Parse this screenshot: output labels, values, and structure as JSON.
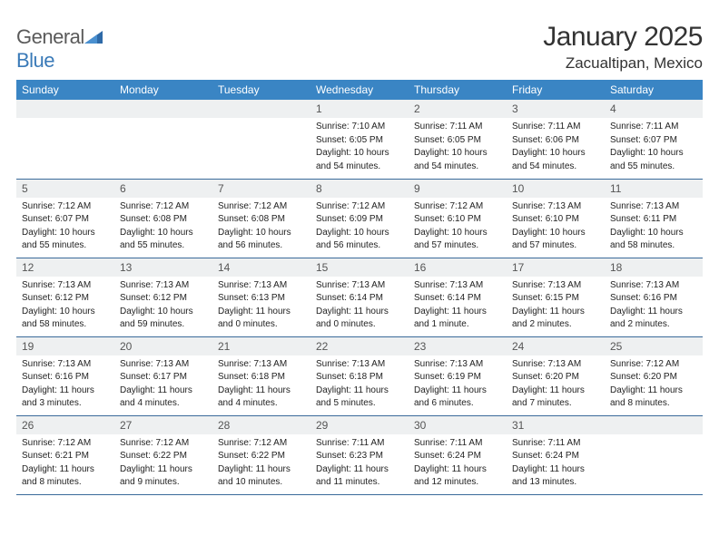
{
  "brand": {
    "name_part1": "General",
    "name_part2": "Blue"
  },
  "title": "January 2025",
  "location": "Zacualtipan, Mexico",
  "colors": {
    "header_bg": "#3a85c4",
    "header_text": "#ffffff",
    "daynum_bg": "#eef0f1",
    "border": "#3a6a9a",
    "brand_gray": "#5a5a5a",
    "brand_blue": "#3a7ab8"
  },
  "weekdays": [
    "Sunday",
    "Monday",
    "Tuesday",
    "Wednesday",
    "Thursday",
    "Friday",
    "Saturday"
  ],
  "weeks": [
    [
      null,
      null,
      null,
      {
        "n": "1",
        "sr": "Sunrise: 7:10 AM",
        "ss": "Sunset: 6:05 PM",
        "d1": "Daylight: 10 hours",
        "d2": "and 54 minutes."
      },
      {
        "n": "2",
        "sr": "Sunrise: 7:11 AM",
        "ss": "Sunset: 6:05 PM",
        "d1": "Daylight: 10 hours",
        "d2": "and 54 minutes."
      },
      {
        "n": "3",
        "sr": "Sunrise: 7:11 AM",
        "ss": "Sunset: 6:06 PM",
        "d1": "Daylight: 10 hours",
        "d2": "and 54 minutes."
      },
      {
        "n": "4",
        "sr": "Sunrise: 7:11 AM",
        "ss": "Sunset: 6:07 PM",
        "d1": "Daylight: 10 hours",
        "d2": "and 55 minutes."
      }
    ],
    [
      {
        "n": "5",
        "sr": "Sunrise: 7:12 AM",
        "ss": "Sunset: 6:07 PM",
        "d1": "Daylight: 10 hours",
        "d2": "and 55 minutes."
      },
      {
        "n": "6",
        "sr": "Sunrise: 7:12 AM",
        "ss": "Sunset: 6:08 PM",
        "d1": "Daylight: 10 hours",
        "d2": "and 55 minutes."
      },
      {
        "n": "7",
        "sr": "Sunrise: 7:12 AM",
        "ss": "Sunset: 6:08 PM",
        "d1": "Daylight: 10 hours",
        "d2": "and 56 minutes."
      },
      {
        "n": "8",
        "sr": "Sunrise: 7:12 AM",
        "ss": "Sunset: 6:09 PM",
        "d1": "Daylight: 10 hours",
        "d2": "and 56 minutes."
      },
      {
        "n": "9",
        "sr": "Sunrise: 7:12 AM",
        "ss": "Sunset: 6:10 PM",
        "d1": "Daylight: 10 hours",
        "d2": "and 57 minutes."
      },
      {
        "n": "10",
        "sr": "Sunrise: 7:13 AM",
        "ss": "Sunset: 6:10 PM",
        "d1": "Daylight: 10 hours",
        "d2": "and 57 minutes."
      },
      {
        "n": "11",
        "sr": "Sunrise: 7:13 AM",
        "ss": "Sunset: 6:11 PM",
        "d1": "Daylight: 10 hours",
        "d2": "and 58 minutes."
      }
    ],
    [
      {
        "n": "12",
        "sr": "Sunrise: 7:13 AM",
        "ss": "Sunset: 6:12 PM",
        "d1": "Daylight: 10 hours",
        "d2": "and 58 minutes."
      },
      {
        "n": "13",
        "sr": "Sunrise: 7:13 AM",
        "ss": "Sunset: 6:12 PM",
        "d1": "Daylight: 10 hours",
        "d2": "and 59 minutes."
      },
      {
        "n": "14",
        "sr": "Sunrise: 7:13 AM",
        "ss": "Sunset: 6:13 PM",
        "d1": "Daylight: 11 hours",
        "d2": "and 0 minutes."
      },
      {
        "n": "15",
        "sr": "Sunrise: 7:13 AM",
        "ss": "Sunset: 6:14 PM",
        "d1": "Daylight: 11 hours",
        "d2": "and 0 minutes."
      },
      {
        "n": "16",
        "sr": "Sunrise: 7:13 AM",
        "ss": "Sunset: 6:14 PM",
        "d1": "Daylight: 11 hours",
        "d2": "and 1 minute."
      },
      {
        "n": "17",
        "sr": "Sunrise: 7:13 AM",
        "ss": "Sunset: 6:15 PM",
        "d1": "Daylight: 11 hours",
        "d2": "and 2 minutes."
      },
      {
        "n": "18",
        "sr": "Sunrise: 7:13 AM",
        "ss": "Sunset: 6:16 PM",
        "d1": "Daylight: 11 hours",
        "d2": "and 2 minutes."
      }
    ],
    [
      {
        "n": "19",
        "sr": "Sunrise: 7:13 AM",
        "ss": "Sunset: 6:16 PM",
        "d1": "Daylight: 11 hours",
        "d2": "and 3 minutes."
      },
      {
        "n": "20",
        "sr": "Sunrise: 7:13 AM",
        "ss": "Sunset: 6:17 PM",
        "d1": "Daylight: 11 hours",
        "d2": "and 4 minutes."
      },
      {
        "n": "21",
        "sr": "Sunrise: 7:13 AM",
        "ss": "Sunset: 6:18 PM",
        "d1": "Daylight: 11 hours",
        "d2": "and 4 minutes."
      },
      {
        "n": "22",
        "sr": "Sunrise: 7:13 AM",
        "ss": "Sunset: 6:18 PM",
        "d1": "Daylight: 11 hours",
        "d2": "and 5 minutes."
      },
      {
        "n": "23",
        "sr": "Sunrise: 7:13 AM",
        "ss": "Sunset: 6:19 PM",
        "d1": "Daylight: 11 hours",
        "d2": "and 6 minutes."
      },
      {
        "n": "24",
        "sr": "Sunrise: 7:13 AM",
        "ss": "Sunset: 6:20 PM",
        "d1": "Daylight: 11 hours",
        "d2": "and 7 minutes."
      },
      {
        "n": "25",
        "sr": "Sunrise: 7:12 AM",
        "ss": "Sunset: 6:20 PM",
        "d1": "Daylight: 11 hours",
        "d2": "and 8 minutes."
      }
    ],
    [
      {
        "n": "26",
        "sr": "Sunrise: 7:12 AM",
        "ss": "Sunset: 6:21 PM",
        "d1": "Daylight: 11 hours",
        "d2": "and 8 minutes."
      },
      {
        "n": "27",
        "sr": "Sunrise: 7:12 AM",
        "ss": "Sunset: 6:22 PM",
        "d1": "Daylight: 11 hours",
        "d2": "and 9 minutes."
      },
      {
        "n": "28",
        "sr": "Sunrise: 7:12 AM",
        "ss": "Sunset: 6:22 PM",
        "d1": "Daylight: 11 hours",
        "d2": "and 10 minutes."
      },
      {
        "n": "29",
        "sr": "Sunrise: 7:11 AM",
        "ss": "Sunset: 6:23 PM",
        "d1": "Daylight: 11 hours",
        "d2": "and 11 minutes."
      },
      {
        "n": "30",
        "sr": "Sunrise: 7:11 AM",
        "ss": "Sunset: 6:24 PM",
        "d1": "Daylight: 11 hours",
        "d2": "and 12 minutes."
      },
      {
        "n": "31",
        "sr": "Sunrise: 7:11 AM",
        "ss": "Sunset: 6:24 PM",
        "d1": "Daylight: 11 hours",
        "d2": "and 13 minutes."
      },
      null
    ]
  ]
}
